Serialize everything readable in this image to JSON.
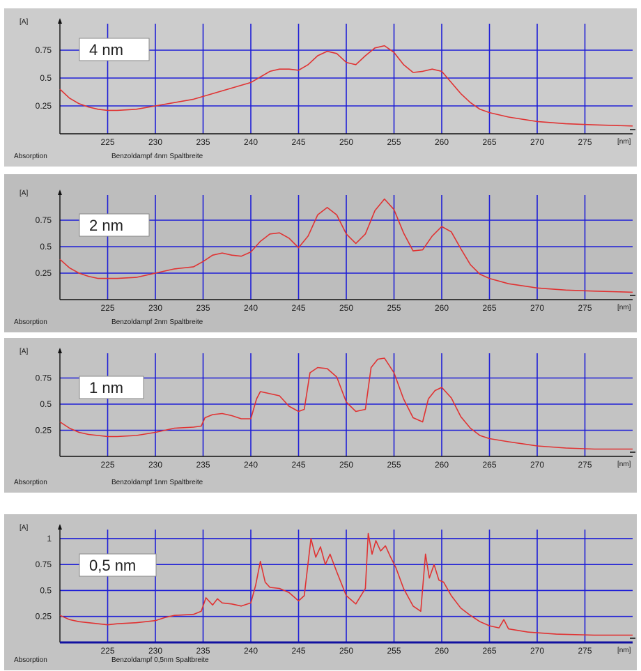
{
  "colors": {
    "panel_bg_light": "#cccccc",
    "panel_bg_dark": "#bdbdbd",
    "grid": "#1f1fd6",
    "curve": "#e03232"
  },
  "chart_data": [
    {
      "type": "line",
      "box_label": "4 nm",
      "caption_left": "Absorption",
      "caption_right": "Benzoldampf 4nm Spaltbreite",
      "y_unit": "[A]",
      "x_unit": "[nm]",
      "xlim": [
        220,
        280
      ],
      "ylim": [
        0,
        1.0
      ],
      "x_ticks": [
        225,
        230,
        235,
        240,
        245,
        250,
        255,
        260,
        265,
        270,
        275
      ],
      "y_ticks": [
        0.25,
        0.5,
        0.75
      ],
      "y_tick_labels": [
        "0.25",
        "0.5",
        "0.75"
      ],
      "x": [
        220,
        221,
        222,
        223,
        224,
        225,
        226,
        228,
        230,
        232,
        234,
        236,
        238,
        240,
        241,
        242,
        243,
        244,
        245,
        246,
        247,
        248,
        249,
        250,
        251,
        252,
        253,
        254,
        255,
        256,
        257,
        258,
        259,
        260,
        261,
        262,
        263,
        264,
        265,
        267,
        270,
        273,
        276,
        280
      ],
      "y": [
        0.4,
        0.32,
        0.27,
        0.24,
        0.22,
        0.21,
        0.21,
        0.22,
        0.25,
        0.28,
        0.31,
        0.36,
        0.41,
        0.46,
        0.51,
        0.56,
        0.58,
        0.58,
        0.57,
        0.62,
        0.7,
        0.74,
        0.72,
        0.64,
        0.62,
        0.7,
        0.77,
        0.79,
        0.73,
        0.62,
        0.55,
        0.56,
        0.58,
        0.56,
        0.46,
        0.36,
        0.28,
        0.22,
        0.19,
        0.15,
        0.11,
        0.09,
        0.08,
        0.07
      ]
    },
    {
      "type": "line",
      "box_label": "2 nm",
      "caption_left": "Absorption",
      "caption_right": "Benzoldampf 2nm Spaltbreite",
      "y_unit": "[A]",
      "x_unit": "[nm]",
      "xlim": [
        220,
        280
      ],
      "ylim": [
        0,
        1.0
      ],
      "x_ticks": [
        225,
        230,
        235,
        240,
        245,
        250,
        255,
        260,
        265,
        270,
        275
      ],
      "y_ticks": [
        0.25,
        0.5,
        0.75
      ],
      "y_tick_labels": [
        "0.25",
        "0.5",
        "0.75"
      ],
      "x": [
        220,
        221,
        222,
        223,
        224,
        225,
        226,
        228,
        230,
        232,
        234,
        235,
        236,
        237,
        238,
        239,
        240,
        241,
        242,
        243,
        244,
        245,
        246,
        247,
        248,
        249,
        250,
        251,
        252,
        253,
        254,
        255,
        256,
        257,
        258,
        259,
        260,
        261,
        262,
        263,
        264,
        265,
        267,
        270,
        273,
        276,
        280
      ],
      "y": [
        0.38,
        0.3,
        0.25,
        0.22,
        0.2,
        0.2,
        0.2,
        0.21,
        0.25,
        0.29,
        0.31,
        0.36,
        0.42,
        0.44,
        0.42,
        0.41,
        0.45,
        0.55,
        0.62,
        0.63,
        0.58,
        0.49,
        0.6,
        0.8,
        0.87,
        0.8,
        0.62,
        0.53,
        0.62,
        0.84,
        0.95,
        0.85,
        0.63,
        0.46,
        0.47,
        0.6,
        0.69,
        0.64,
        0.48,
        0.33,
        0.24,
        0.2,
        0.15,
        0.11,
        0.09,
        0.08,
        0.07
      ]
    },
    {
      "type": "line",
      "box_label": "1 nm",
      "caption_left": "Absorption",
      "caption_right": "Benzoldampf 1nm Spaltbreite",
      "y_unit": "[A]",
      "x_unit": "[nm]",
      "xlim": [
        220,
        280
      ],
      "ylim": [
        0,
        1.0
      ],
      "x_ticks": [
        225,
        230,
        235,
        240,
        245,
        250,
        255,
        260,
        265,
        270,
        275
      ],
      "y_ticks": [
        0.25,
        0.5,
        0.75
      ],
      "y_tick_labels": [
        "0.25",
        "0.5",
        "0.75"
      ],
      "x": [
        220,
        221,
        222,
        223,
        224,
        225,
        226,
        228,
        230,
        232,
        234,
        234.8,
        235.2,
        236,
        237,
        238,
        239,
        240,
        240.6,
        241,
        242,
        243,
        244,
        245,
        245.6,
        246.2,
        247,
        248,
        249,
        250,
        251,
        252,
        252.6,
        253.3,
        254,
        255,
        256,
        257,
        258,
        258.6,
        259.3,
        260,
        261,
        262,
        263,
        264,
        265,
        267,
        270,
        273,
        276,
        280
      ],
      "y": [
        0.33,
        0.27,
        0.23,
        0.21,
        0.2,
        0.19,
        0.19,
        0.2,
        0.23,
        0.27,
        0.28,
        0.29,
        0.37,
        0.4,
        0.41,
        0.39,
        0.36,
        0.36,
        0.55,
        0.62,
        0.6,
        0.58,
        0.48,
        0.43,
        0.45,
        0.8,
        0.85,
        0.84,
        0.76,
        0.52,
        0.43,
        0.45,
        0.85,
        0.93,
        0.94,
        0.8,
        0.55,
        0.37,
        0.33,
        0.55,
        0.63,
        0.66,
        0.56,
        0.38,
        0.27,
        0.2,
        0.17,
        0.14,
        0.1,
        0.08,
        0.07,
        0.07
      ]
    },
    {
      "type": "line",
      "box_label": "0,5 nm",
      "caption_left": "Absorption",
      "caption_right": "Benzoldampf 0,5nm Spaltbreite",
      "y_unit": "[A]",
      "x_unit": "[nm]",
      "xlim": [
        220,
        280
      ],
      "ylim": [
        0,
        1.1
      ],
      "x_ticks": [
        225,
        230,
        235,
        240,
        245,
        250,
        255,
        260,
        265,
        270,
        275
      ],
      "y_ticks": [
        0.25,
        0.5,
        0.75,
        1.0
      ],
      "y_tick_labels": [
        "0.25",
        "0.5",
        "0.75",
        "1"
      ],
      "x": [
        220,
        221,
        222,
        223,
        224,
        225,
        226,
        228,
        230,
        231,
        232,
        234,
        234.8,
        235.3,
        236,
        236.5,
        237,
        238,
        239,
        240,
        240.5,
        241,
        241.5,
        242,
        243,
        244,
        245,
        245.6,
        246.3,
        246.8,
        247.3,
        247.8,
        248.3,
        249,
        250,
        251,
        252,
        252.3,
        252.7,
        253.1,
        253.6,
        254.1,
        254.6,
        255.2,
        256,
        257,
        257.8,
        258.3,
        258.7,
        259.2,
        259.7,
        260.2,
        261,
        262,
        263,
        264,
        265,
        266,
        266.5,
        267,
        269,
        272,
        276,
        280
      ],
      "y": [
        0.26,
        0.22,
        0.2,
        0.19,
        0.18,
        0.17,
        0.18,
        0.19,
        0.21,
        0.24,
        0.26,
        0.27,
        0.3,
        0.43,
        0.36,
        0.42,
        0.38,
        0.37,
        0.35,
        0.38,
        0.55,
        0.78,
        0.58,
        0.53,
        0.52,
        0.48,
        0.4,
        0.45,
        1.0,
        0.82,
        0.92,
        0.75,
        0.85,
        0.68,
        0.45,
        0.37,
        0.52,
        1.05,
        0.85,
        0.98,
        0.88,
        0.93,
        0.83,
        0.72,
        0.52,
        0.35,
        0.3,
        0.85,
        0.62,
        0.75,
        0.6,
        0.58,
        0.45,
        0.33,
        0.26,
        0.2,
        0.16,
        0.14,
        0.22,
        0.13,
        0.1,
        0.08,
        0.07,
        0.07
      ]
    }
  ]
}
